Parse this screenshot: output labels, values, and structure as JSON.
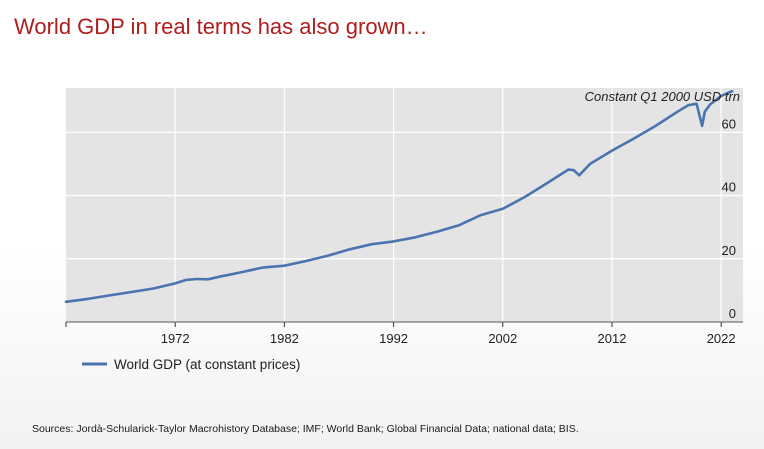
{
  "slide": {
    "title": "World GDP in real terms has also grown…",
    "sources": "Sources: Jordà-Schularick-Taylor Macrohistory Database; IMF; World Bank; Global Financial Data; national data; BIS."
  },
  "colors": {
    "title": "#b01d1d",
    "plot_background": "#e4e4e4",
    "grid": "#ffffff",
    "series": "#4a74b0"
  },
  "chart_data": {
    "type": "line",
    "unit_label": "Constant Q1 2000 USD trn",
    "xlim": [
      1962,
      2024
    ],
    "ylim": [
      0,
      74
    ],
    "x_ticks": [
      1972,
      1982,
      1992,
      2002,
      2012,
      2022
    ],
    "y_ticks": [
      0,
      20,
      40,
      60
    ],
    "y_axis_position": "right",
    "grid": true,
    "legend_position": "bottom-left",
    "series": [
      {
        "name": "World GDP (at constant prices)",
        "x": [
          1962,
          1964,
          1966,
          1968,
          1970,
          1972,
          1973,
          1974,
          1975,
          1976,
          1978,
          1980,
          1982,
          1984,
          1986,
          1988,
          1990,
          1992,
          1994,
          1996,
          1998,
          2000,
          2002,
          2004,
          2006,
          2008,
          2008.5,
          2009,
          2010,
          2012,
          2014,
          2016,
          2018,
          2019,
          2019.75,
          2020.25,
          2020.5,
          2021,
          2022,
          2023
        ],
        "y": [
          6.4,
          7.3,
          8.4,
          9.5,
          10.6,
          12.2,
          13.3,
          13.6,
          13.5,
          14.3,
          15.7,
          17.2,
          17.8,
          19.3,
          21.0,
          23.0,
          24.6,
          25.5,
          26.8,
          28.6,
          30.6,
          33.8,
          35.8,
          39.5,
          43.8,
          48.2,
          48.0,
          46.4,
          50.0,
          54.2,
          58.0,
          62.0,
          66.5,
          68.6,
          69.0,
          62.0,
          66.5,
          68.8,
          71.5,
          73.0
        ]
      }
    ]
  }
}
